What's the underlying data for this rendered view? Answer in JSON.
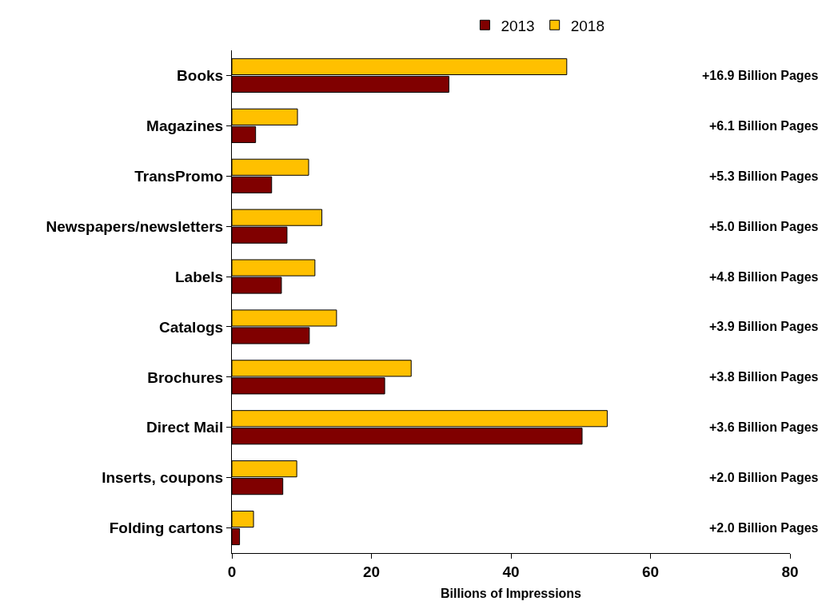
{
  "chart_data": {
    "type": "bar",
    "orientation": "horizontal",
    "xlabel": "Billions of Impressions",
    "categories": [
      "Books",
      "Magazines",
      "TransPromo",
      "Newspapers/newsletters",
      "Labels",
      "Catalogs",
      "Brochures",
      "Direct Mail",
      "Inserts, coupons",
      "Folding cartons"
    ],
    "series": [
      {
        "name": "2013",
        "color": "#800000",
        "values": [
          31.1,
          3.4,
          5.7,
          7.9,
          7.1,
          11.1,
          21.9,
          50.2,
          7.3,
          1.1
        ]
      },
      {
        "name": "2018",
        "color": "#ffc000",
        "values": [
          48.0,
          9.4,
          11.0,
          12.9,
          11.9,
          15.0,
          25.7,
          53.8,
          9.3,
          3.1
        ]
      }
    ],
    "annotations": [
      "+16.9 Billion Pages",
      "+6.1 Billion Pages",
      "+5.3 Billion Pages",
      "+5.0 Billion Pages",
      "+4.8 Billion Pages",
      "+3.9 Billion Pages",
      "+3.8 Billion Pages",
      "+3.6 Billion Pages",
      "+2.0 Billion Pages",
      "+2.0 Billion Pages"
    ],
    "xlim": [
      0,
      80
    ],
    "xticks": [
      0,
      20,
      40,
      60,
      80
    ],
    "legend": "top"
  }
}
